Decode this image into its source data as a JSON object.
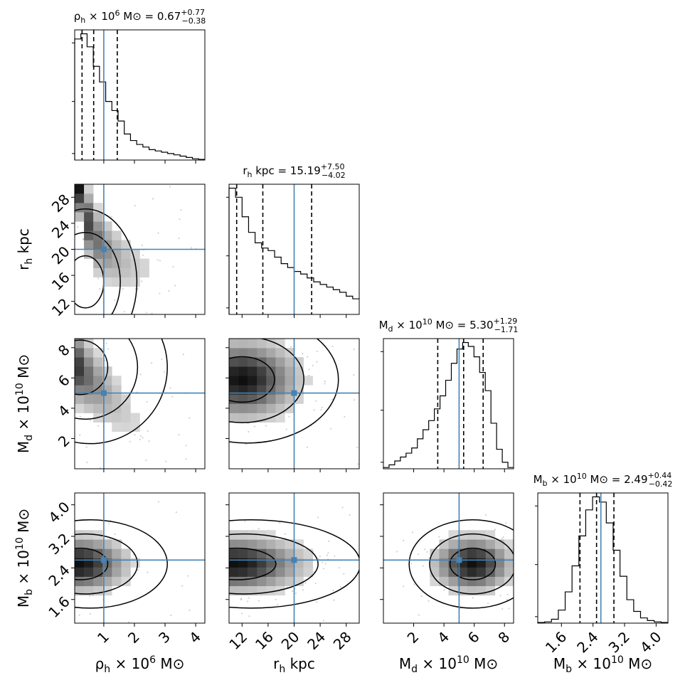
{
  "chart_data": {
    "type": "corner",
    "parameters": [
      {
        "key": "rho_h",
        "label_main": "ρ",
        "label_sub": "h",
        "label_rest": " × 10",
        "label_exp": "6",
        "label_unit": " M⊙",
        "range": [
          0.05,
          4.3
        ],
        "ticks": [
          1,
          2,
          3,
          4
        ],
        "tick_labels": [
          "1",
          "2",
          "3",
          "4"
        ],
        "truth": 1.0,
        "quantiles": [
          0.29,
          0.67,
          1.44
        ],
        "title": {
          "name": "ρ",
          "sub": "h",
          "mid": " × 10",
          "exp": "6",
          "unit": " M⊙ = ",
          "median": "0.67",
          "plus": "+0.77",
          "minus": "−0.38"
        },
        "hist": [
          0.93,
          0.97,
          0.87,
          0.72,
          0.6,
          0.45,
          0.38,
          0.3,
          0.2,
          0.15,
          0.12,
          0.1,
          0.08,
          0.07,
          0.06,
          0.05,
          0.04,
          0.03,
          0.02,
          0.01,
          0.005
        ]
      },
      {
        "key": "r_h",
        "label_main": "r",
        "label_sub": "h",
        "label_rest": " kpc",
        "label_exp": "",
        "label_unit": "",
        "range": [
          10,
          30
        ],
        "ticks": [
          12,
          16,
          20,
          24,
          28
        ],
        "tick_labels": [
          "12",
          "16",
          "20",
          "24",
          "28"
        ],
        "truth": 20.0,
        "quantiles": [
          11.17,
          15.19,
          22.69
        ],
        "title": {
          "name": "r",
          "sub": "h",
          "mid": " kpc = ",
          "exp": "",
          "unit": "",
          "median": "15.19",
          "plus": "+7.50",
          "minus": "−4.02"
        },
        "hist": [
          0.97,
          0.9,
          0.75,
          0.63,
          0.55,
          0.51,
          0.49,
          0.44,
          0.39,
          0.36,
          0.33,
          0.31,
          0.28,
          0.25,
          0.23,
          0.21,
          0.19,
          0.17,
          0.14,
          0.12
        ]
      },
      {
        "key": "M_d",
        "label_main": "M",
        "label_sub": "d",
        "label_rest": " × 10",
        "label_exp": "10",
        "label_unit": " M⊙",
        "range": [
          0.0,
          8.6
        ],
        "ticks": [
          2,
          4,
          6,
          8
        ],
        "tick_labels": [
          "2",
          "4",
          "6",
          "8"
        ],
        "truth": 5.0,
        "quantiles": [
          3.59,
          5.3,
          6.59
        ],
        "title": {
          "name": "M",
          "sub": "d",
          "mid": " × 10",
          "exp": "10",
          "unit": " M⊙ = ",
          "median": "5.30",
          "plus": "+1.29",
          "minus": "−1.71"
        },
        "hist": [
          0.01,
          0.03,
          0.06,
          0.09,
          0.12,
          0.16,
          0.23,
          0.3,
          0.37,
          0.46,
          0.56,
          0.68,
          0.81,
          0.92,
          0.97,
          0.94,
          0.86,
          0.74,
          0.6,
          0.35,
          0.15,
          0.05,
          0.01
        ]
      },
      {
        "key": "M_b",
        "label_main": "M",
        "label_sub": "b",
        "label_rest": " × 10",
        "label_exp": "10",
        "label_unit": " M⊙",
        "range": [
          1.0,
          4.3
        ],
        "ticks": [
          1.6,
          2.4,
          3.2,
          4.0
        ],
        "tick_labels": [
          "1.6",
          "2.4",
          "3.2",
          "4.0"
        ],
        "truth": 2.6,
        "quantiles": [
          2.07,
          2.49,
          2.93
        ],
        "title": {
          "name": "M",
          "sub": "b",
          "mid": " × 10",
          "exp": "10",
          "unit": " M⊙ = ",
          "median": "2.49",
          "plus": "+0.44",
          "minus": "−0.42"
        },
        "hist": [
          0.005,
          0.01,
          0.03,
          0.1,
          0.24,
          0.44,
          0.67,
          0.87,
          0.97,
          0.93,
          0.77,
          0.56,
          0.36,
          0.18,
          0.09,
          0.04,
          0.02,
          0.01,
          0.005
        ]
      }
    ],
    "pairs": [
      {
        "row": 1,
        "col": 0,
        "peak": [
          0.4,
          15
        ],
        "spread": [
          0.6,
          4
        ]
      },
      {
        "row": 2,
        "col": 0,
        "peak": [
          0.2,
          6.7
        ],
        "spread": [
          0.9,
          1.8
        ]
      },
      {
        "row": 2,
        "col": 1,
        "peak": [
          12,
          5.9
        ],
        "spread": [
          5,
          1.5
        ]
      },
      {
        "row": 3,
        "col": 0,
        "peak": [
          0.2,
          2.5
        ],
        "spread": [
          0.9,
          0.4
        ]
      },
      {
        "row": 3,
        "col": 1,
        "peak": [
          11,
          2.5
        ],
        "spread": [
          6,
          0.4
        ]
      },
      {
        "row": 3,
        "col": 2,
        "peak": [
          5.9,
          2.5
        ],
        "spread": [
          1.5,
          0.4
        ]
      }
    ]
  }
}
